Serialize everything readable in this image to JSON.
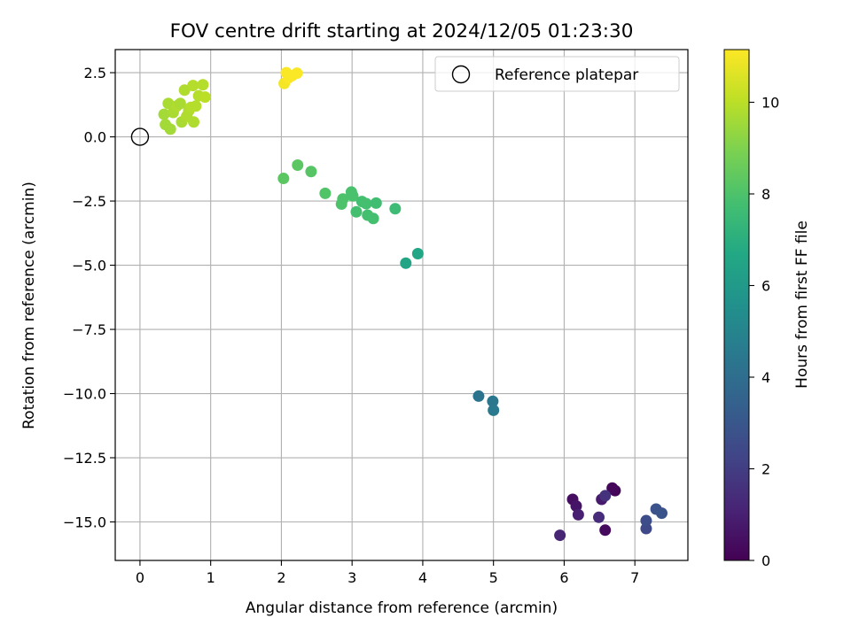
{
  "chart_data": {
    "type": "scatter",
    "title": "FOV centre drift starting at 2024/12/05 01:23:30",
    "xlabel": "Angular distance from reference (arcmin)",
    "ylabel": "Rotation from reference (arcmin)",
    "xlim": [
      -0.35,
      7.75
    ],
    "ylim": [
      -16.5,
      3.4
    ],
    "x_ticks": [
      0,
      1,
      2,
      3,
      4,
      5,
      6,
      7
    ],
    "y_ticks": [
      2.5,
      0.0,
      -2.5,
      -5.0,
      -7.5,
      -10.0,
      -12.5,
      -15.0
    ],
    "x_tick_labels": [
      "0",
      "1",
      "2",
      "3",
      "4",
      "5",
      "6",
      "7"
    ],
    "y_tick_labels": [
      "2.5",
      "0.0",
      "−2.5",
      "−5.0",
      "−7.5",
      "−10.0",
      "−12.5",
      "−15.0"
    ],
    "grid": true,
    "legend": {
      "placement": "top-right",
      "label": "Reference platepar"
    },
    "reference_point": {
      "x": 0.0,
      "y": 0.0
    },
    "colorbar": {
      "label": "Hours from first FF file",
      "range": [
        0,
        11.15
      ],
      "ticks": [
        0,
        2,
        4,
        6,
        8,
        10
      ],
      "tick_labels": [
        "0",
        "2",
        "4",
        "6",
        "8",
        "10"
      ],
      "colormap": "viridis"
    },
    "points": [
      {
        "x": 6.72,
        "y": -13.78,
        "c": 0.1
      },
      {
        "x": 6.68,
        "y": -13.68,
        "c": 0.2
      },
      {
        "x": 6.58,
        "y": -15.32,
        "c": 0.3
      },
      {
        "x": 6.12,
        "y": -14.12,
        "c": 0.4
      },
      {
        "x": 6.17,
        "y": -14.38,
        "c": 0.6
      },
      {
        "x": 6.53,
        "y": -14.12,
        "c": 0.8
      },
      {
        "x": 6.2,
        "y": -14.72,
        "c": 1.0
      },
      {
        "x": 5.94,
        "y": -15.52,
        "c": 1.2
      },
      {
        "x": 6.49,
        "y": -14.82,
        "c": 1.4
      },
      {
        "x": 6.58,
        "y": -13.98,
        "c": 1.6
      },
      {
        "x": 7.16,
        "y": -15.26,
        "c": 2.4
      },
      {
        "x": 7.16,
        "y": -14.95,
        "c": 2.6
      },
      {
        "x": 7.3,
        "y": -14.5,
        "c": 2.8
      },
      {
        "x": 7.38,
        "y": -14.66,
        "c": 2.9
      },
      {
        "x": 4.79,
        "y": -10.1,
        "c": 4.3
      },
      {
        "x": 4.99,
        "y": -10.3,
        "c": 4.4
      },
      {
        "x": 5.0,
        "y": -10.65,
        "c": 4.5
      },
      {
        "x": 3.76,
        "y": -4.92,
        "c": 6.5
      },
      {
        "x": 3.93,
        "y": -4.55,
        "c": 6.6
      },
      {
        "x": 2.03,
        "y": -1.62,
        "c": 8.3
      },
      {
        "x": 2.23,
        "y": -1.1,
        "c": 8.3
      },
      {
        "x": 2.42,
        "y": -1.35,
        "c": 8.2
      },
      {
        "x": 2.62,
        "y": -2.2,
        "c": 8.1
      },
      {
        "x": 2.85,
        "y": -2.62,
        "c": 8.0
      },
      {
        "x": 2.87,
        "y": -2.42,
        "c": 8.0
      },
      {
        "x": 2.99,
        "y": -2.15,
        "c": 7.9
      },
      {
        "x": 3.01,
        "y": -2.3,
        "c": 7.9
      },
      {
        "x": 3.06,
        "y": -2.92,
        "c": 7.8
      },
      {
        "x": 3.14,
        "y": -2.52,
        "c": 7.8
      },
      {
        "x": 3.2,
        "y": -2.6,
        "c": 7.8
      },
      {
        "x": 3.22,
        "y": -3.05,
        "c": 7.8
      },
      {
        "x": 3.3,
        "y": -3.18,
        "c": 7.8
      },
      {
        "x": 3.34,
        "y": -2.58,
        "c": 7.7
      },
      {
        "x": 3.61,
        "y": -2.8,
        "c": 7.6
      },
      {
        "x": 0.34,
        "y": 0.88,
        "c": 9.6
      },
      {
        "x": 0.36,
        "y": 0.48,
        "c": 9.6
      },
      {
        "x": 0.4,
        "y": 1.3,
        "c": 9.7
      },
      {
        "x": 0.43,
        "y": 0.3,
        "c": 9.6
      },
      {
        "x": 0.47,
        "y": 0.95,
        "c": 9.7
      },
      {
        "x": 0.52,
        "y": 1.2,
        "c": 9.8
      },
      {
        "x": 0.57,
        "y": 1.3,
        "c": 9.7
      },
      {
        "x": 0.59,
        "y": 0.58,
        "c": 9.7
      },
      {
        "x": 0.63,
        "y": 1.82,
        "c": 9.8
      },
      {
        "x": 0.66,
        "y": 0.8,
        "c": 9.8
      },
      {
        "x": 0.69,
        "y": 1.02,
        "c": 9.8
      },
      {
        "x": 0.72,
        "y": 1.15,
        "c": 9.9
      },
      {
        "x": 0.75,
        "y": 2.0,
        "c": 9.9
      },
      {
        "x": 0.76,
        "y": 0.58,
        "c": 9.8
      },
      {
        "x": 0.79,
        "y": 1.2,
        "c": 9.9
      },
      {
        "x": 0.83,
        "y": 1.6,
        "c": 9.9
      },
      {
        "x": 0.89,
        "y": 2.03,
        "c": 9.9
      },
      {
        "x": 0.92,
        "y": 1.55,
        "c": 10.0
      },
      {
        "x": 2.04,
        "y": 2.08,
        "c": 11.0
      },
      {
        "x": 2.07,
        "y": 2.5,
        "c": 11.1
      },
      {
        "x": 2.1,
        "y": 2.3,
        "c": 11.1
      },
      {
        "x": 2.15,
        "y": 2.38,
        "c": 11.1
      },
      {
        "x": 2.22,
        "y": 2.48,
        "c": 11.1
      }
    ]
  }
}
